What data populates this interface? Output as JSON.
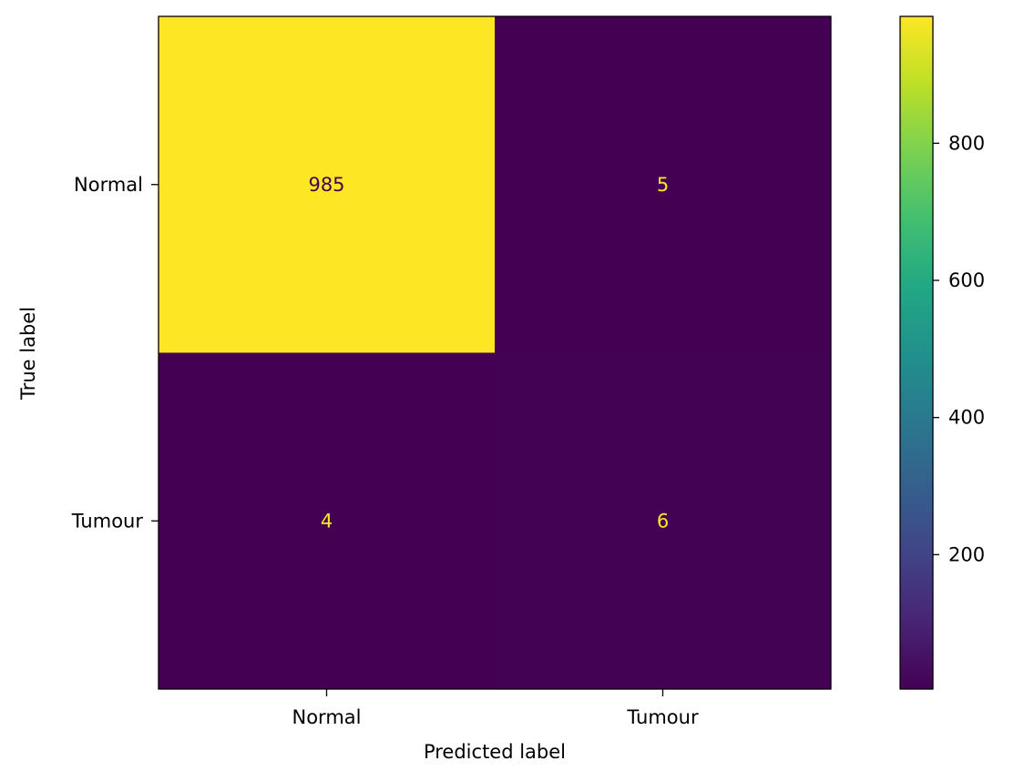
{
  "chart_data": {
    "type": "heatmap",
    "x_categories": [
      "Normal",
      "Tumour"
    ],
    "y_categories": [
      "Normal",
      "Tumour"
    ],
    "values": [
      [
        985,
        5
      ],
      [
        4,
        6
      ]
    ],
    "xlabel": "Predicted label",
    "ylabel": "True label",
    "colormap": "viridis",
    "colors": {
      "high": "#fde725",
      "low": "#440154",
      "text_on_high": "#440154",
      "text_on_low": "#fde725"
    },
    "colorbar": {
      "range": [
        4,
        985
      ],
      "ticks": [
        200,
        400,
        600,
        800
      ]
    }
  }
}
